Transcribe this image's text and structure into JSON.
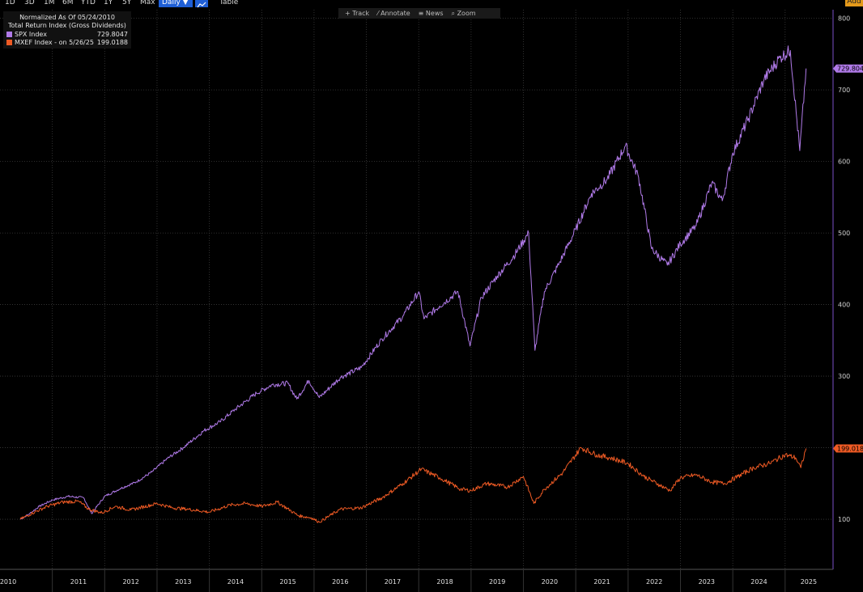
{
  "toolbar": {
    "periods": [
      "1D",
      "3D",
      "1M",
      "6M",
      "YTD",
      "1Y",
      "5Y",
      "Max"
    ],
    "daily_label": "Daily ▼",
    "table_label": "Table",
    "add_label": "Add"
  },
  "tools": {
    "track": "+ Track",
    "annotate": "⁄ Annotate",
    "news": "≡ News",
    "zoom": "⌕ Zoom"
  },
  "legend": {
    "line1": "Normalized As Of 05/24/2010",
    "line2": "Total Return Index (Gross Dividends)",
    "spx_label": "SPX Index",
    "spx_value": "729.8047",
    "mxef_label": "MXEF Index -  on 5/26/25",
    "mxef_value": "199.0188"
  },
  "colors": {
    "spx": "#b07ae8",
    "mxef": "#ee5a24",
    "grid": "#3c3c3c",
    "axis": "#7a4fc9"
  },
  "chart_data": {
    "type": "line",
    "title": "",
    "xlabel": "",
    "ylabel": "",
    "ylim": [
      30,
      812
    ],
    "xlim": [
      2010.0,
      2025.9
    ],
    "y_ticks": [
      100,
      200,
      300,
      400,
      500,
      600,
      700,
      800
    ],
    "x_tick_labels": [
      "2010",
      "2011",
      "2012",
      "2013",
      "2014",
      "2015",
      "2016",
      "2017",
      "2018",
      "2019",
      "2020",
      "2021",
      "2022",
      "2023",
      "2024",
      "2025"
    ],
    "last_labels": {
      "spx": "729.804",
      "mxef": "199.018"
    },
    "series": [
      {
        "name": "SPX Index",
        "color_key": "spx",
        "x": [
          2010.39,
          2010.55,
          2010.75,
          2011.0,
          2011.3,
          2011.6,
          2011.75,
          2012.0,
          2012.3,
          2012.6,
          2012.9,
          2013.2,
          2013.5,
          2013.9,
          2014.2,
          2014.5,
          2014.9,
          2015.2,
          2015.5,
          2015.67,
          2015.9,
          2016.1,
          2016.5,
          2016.9,
          2017.3,
          2017.7,
          2018.0,
          2018.1,
          2018.4,
          2018.75,
          2018.98,
          2019.2,
          2019.5,
          2019.8,
          2020.1,
          2020.22,
          2020.4,
          2020.7,
          2021.0,
          2021.3,
          2021.6,
          2021.95,
          2022.2,
          2022.45,
          2022.75,
          2023.0,
          2023.3,
          2023.6,
          2023.8,
          2024.0,
          2024.3,
          2024.6,
          2024.9,
          2025.1,
          2025.28,
          2025.4
        ],
        "values": [
          100,
          107,
          118,
          127,
          132,
          130,
          108,
          132,
          143,
          152,
          166,
          185,
          200,
          224,
          236,
          254,
          276,
          288,
          290,
          268,
          294,
          270,
          298,
          312,
          352,
          384,
          418,
          380,
          398,
          418,
          342,
          410,
          440,
          466,
          500,
          336,
          418,
          460,
          505,
          555,
          575,
          622,
          578,
          478,
          455,
          485,
          510,
          570,
          545,
          612,
          660,
          715,
          745,
          755,
          615,
          729.8
        ]
      },
      {
        "name": "MXEF Index -  on 5/26/25",
        "color_key": "mxef",
        "x": [
          2010.39,
          2010.6,
          2010.9,
          2011.2,
          2011.5,
          2011.7,
          2011.95,
          2012.2,
          2012.5,
          2013.0,
          2013.3,
          2013.6,
          2014.0,
          2014.4,
          2014.7,
          2015.0,
          2015.3,
          2015.7,
          2015.95,
          2016.1,
          2016.5,
          2016.9,
          2017.3,
          2017.7,
          2018.05,
          2018.4,
          2018.8,
          2019.0,
          2019.3,
          2019.7,
          2020.0,
          2020.2,
          2020.4,
          2020.75,
          2021.1,
          2021.4,
          2021.7,
          2022.0,
          2022.3,
          2022.6,
          2022.8,
          2023.0,
          2023.3,
          2023.6,
          2023.85,
          2024.1,
          2024.4,
          2024.7,
          2025.0,
          2025.2,
          2025.3,
          2025.4
        ],
        "values": [
          100,
          108,
          118,
          124,
          125,
          114,
          109,
          118,
          113,
          122,
          116,
          114,
          110,
          120,
          122,
          118,
          124,
          105,
          102,
          96,
          114,
          116,
          130,
          150,
          170,
          158,
          142,
          140,
          150,
          145,
          160,
          122,
          142,
          165,
          200,
          190,
          185,
          178,
          160,
          148,
          140,
          158,
          162,
          152,
          150,
          160,
          172,
          178,
          190,
          186,
          172,
          199.0
        ]
      }
    ]
  }
}
